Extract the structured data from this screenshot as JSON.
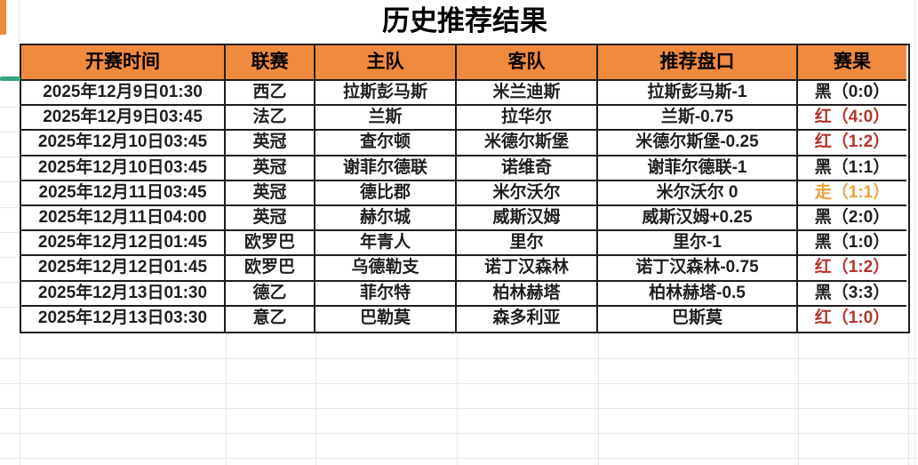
{
  "title": "历史推荐结果",
  "table": {
    "columns": [
      {
        "key": "time",
        "label": "开赛时间"
      },
      {
        "key": "league",
        "label": "联赛"
      },
      {
        "key": "home",
        "label": "主队"
      },
      {
        "key": "away",
        "label": "客队"
      },
      {
        "key": "handicap",
        "label": "推荐盘口"
      },
      {
        "key": "result",
        "label": "赛果"
      }
    ],
    "rows": [
      {
        "time": "2025年12月9日01:30",
        "league": "西乙",
        "home": "拉斯彭马斯",
        "away": "米兰迪斯",
        "handicap": "拉斯彭马斯-1",
        "result": "黑（0:0）",
        "result_type": "black"
      },
      {
        "time": "2025年12月9日03:45",
        "league": "法乙",
        "home": "兰斯",
        "away": "拉华尔",
        "handicap": "兰斯-0.75",
        "result": "红（4:0）",
        "result_type": "red"
      },
      {
        "time": "2025年12月10日03:45",
        "league": "英冠",
        "home": "查尔顿",
        "away": "米德尔斯堡",
        "handicap": "米德尔斯堡-0.25",
        "result": "红（1:2）",
        "result_type": "red"
      },
      {
        "time": "2025年12月10日03:45",
        "league": "英冠",
        "home": "谢菲尔德联",
        "away": "诺维奇",
        "handicap": "谢菲尔德联-1",
        "result": "黑（1:1）",
        "result_type": "black"
      },
      {
        "time": "2025年12月11日03:45",
        "league": "英冠",
        "home": "德比郡",
        "away": "米尔沃尔",
        "handicap": "米尔沃尔 0",
        "result": "走（1:1）",
        "result_type": "orange"
      },
      {
        "time": "2025年12月11日04:00",
        "league": "英冠",
        "home": "赫尔城",
        "away": "威斯汉姆",
        "handicap": "威斯汉姆+0.25",
        "result": "黑（2:0）",
        "result_type": "black"
      },
      {
        "time": "2025年12月12日01:45",
        "league": "欧罗巴",
        "home": "年青人",
        "away": "里尔",
        "handicap": "里尔-1",
        "result": "黑（1:0）",
        "result_type": "black"
      },
      {
        "time": "2025年12月12日01:45",
        "league": "欧罗巴",
        "home": "乌德勒支",
        "away": "诺丁汉森林",
        "handicap": "诺丁汉森林-0.75",
        "result": "红（1:2）",
        "result_type": "red"
      },
      {
        "time": "2025年12月13日01:30",
        "league": "德乙",
        "home": "菲尔特",
        "away": "柏林赫塔",
        "handicap": "柏林赫塔-0.5",
        "result": "黑（3:3）",
        "result_type": "black"
      },
      {
        "time": "2025年12月13日03:30",
        "league": "意乙",
        "home": "巴勒莫",
        "away": "森多利亚",
        "handicap": "巴斯莫",
        "result": "红（1:0）",
        "result_type": "red"
      }
    ]
  },
  "colors": {
    "header_bg": "#F08A3E",
    "result_black": "#1F1F1F",
    "result_red": "#B3352B",
    "result_orange": "#EEA23D",
    "accent_teal": "#34A57C",
    "border": "#1E1E1E"
  }
}
